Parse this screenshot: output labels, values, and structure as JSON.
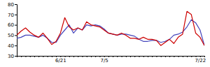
{
  "chart_data": {
    "type": "line",
    "categories": [
      null,
      null,
      null,
      null,
      null,
      null,
      null,
      null,
      null,
      null,
      "6/21",
      null,
      null,
      null,
      null,
      null,
      null,
      null,
      null,
      null,
      "7/5",
      null,
      null,
      null,
      null,
      null,
      null,
      null,
      null,
      null,
      null,
      null,
      null,
      null,
      null,
      null,
      null,
      null,
      null,
      null,
      null,
      null,
      "7/22",
      null
    ],
    "series": [
      {
        "color": "#4444bb",
        "values": [
          47,
          48,
          50,
          50,
          49,
          48,
          50,
          47,
          43,
          43,
          50,
          55,
          60,
          52,
          57,
          55,
          60,
          59,
          60,
          59,
          56,
          52,
          51,
          50,
          51,
          51,
          50,
          49,
          46,
          44,
          44,
          45,
          45,
          43,
          44,
          46,
          50,
          51,
          53,
          58,
          65,
          62,
          55,
          40
        ]
      },
      {
        "color": "#cc0000",
        "values": [
          50,
          54,
          57,
          53,
          50,
          48,
          52,
          47,
          41,
          44,
          52,
          67,
          58,
          55,
          57,
          55,
          63,
          60,
          59,
          58,
          55,
          52,
          51,
          50,
          52,
          50,
          47,
          47,
          46,
          48,
          46,
          46,
          45,
          40,
          43,
          46,
          42,
          48,
          51,
          73,
          70,
          52,
          48,
          40
        ]
      }
    ],
    "ylim": [
      30,
      80
    ],
    "yticks": [
      30,
      40,
      50,
      60,
      70,
      80
    ]
  }
}
